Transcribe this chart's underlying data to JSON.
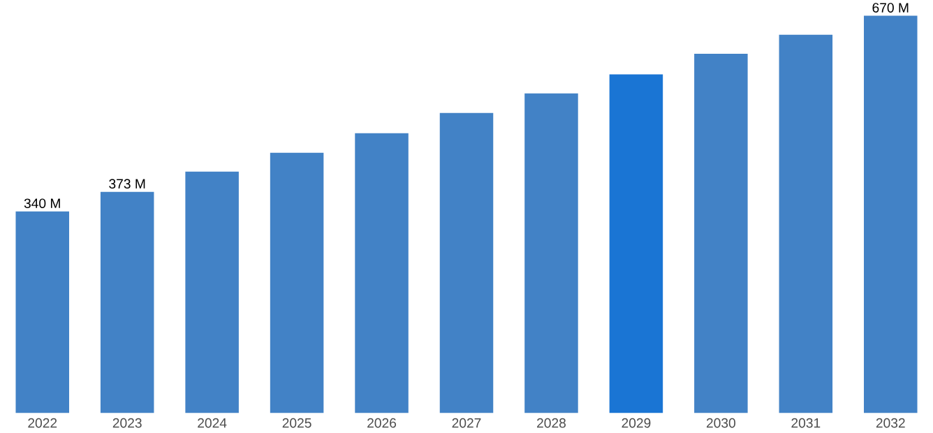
{
  "chart_data": {
    "type": "bar",
    "categories": [
      "2022",
      "2023",
      "2024",
      "2025",
      "2026",
      "2027",
      "2028",
      "2029",
      "2030",
      "2031",
      "2032"
    ],
    "values": [
      340,
      373,
      407,
      439,
      472,
      506,
      539,
      571,
      606,
      638,
      670
    ],
    "colors": [
      "#4282c6",
      "#4282c6",
      "#4282c6",
      "#4282c6",
      "#4282c6",
      "#4282c6",
      "#4282c6",
      "#1a75d4",
      "#4282c6",
      "#4282c6",
      "#4282c6"
    ],
    "value_labels": [
      "340 M",
      "373 M",
      null,
      null,
      null,
      null,
      null,
      null,
      null,
      null,
      "670 M"
    ]
  }
}
